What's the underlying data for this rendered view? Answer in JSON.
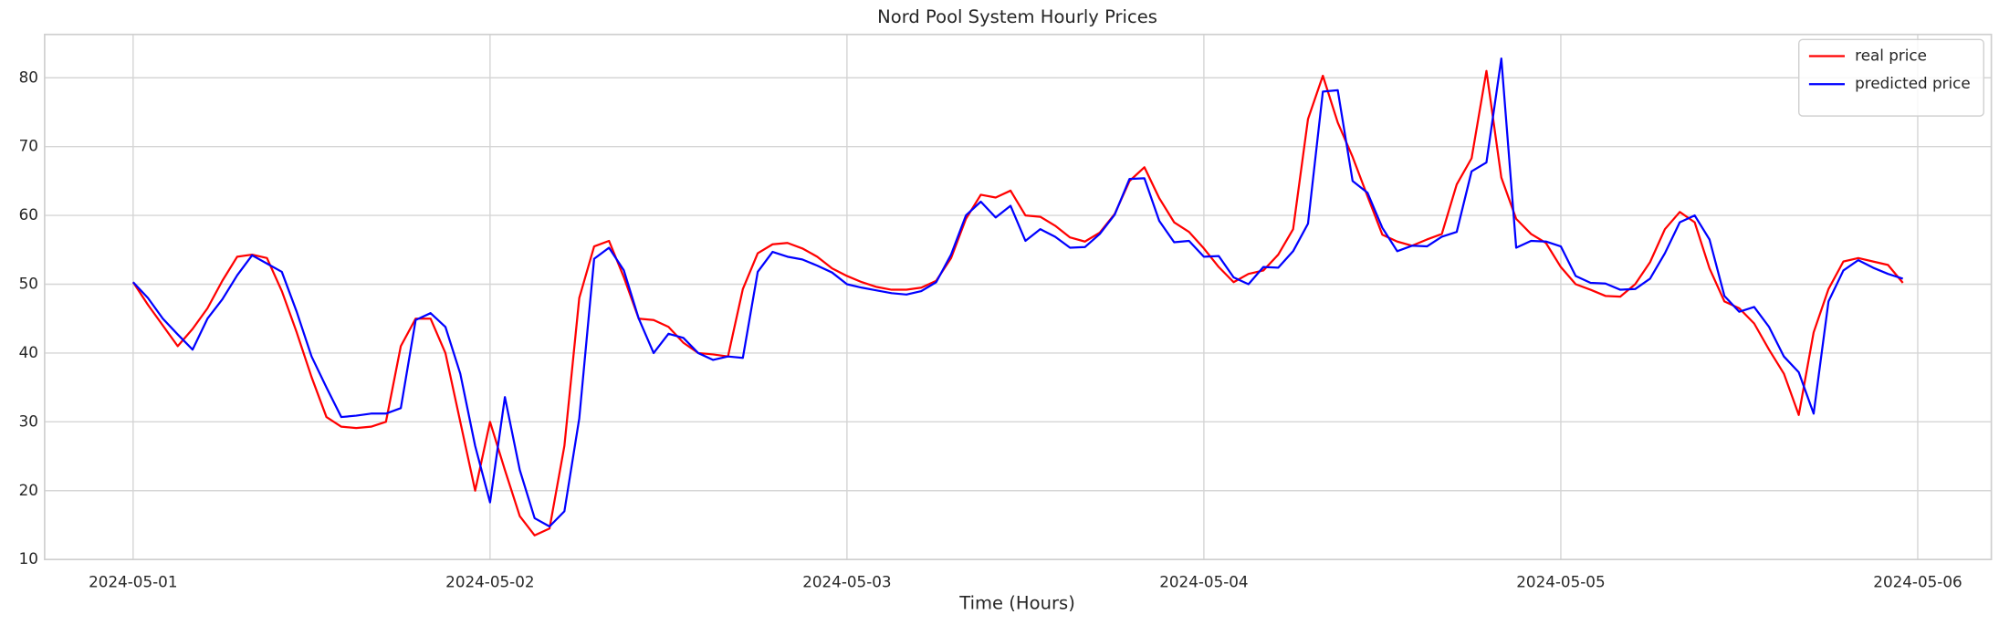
{
  "chart_data": {
    "type": "line",
    "title": "Nord Pool System Hourly Prices",
    "xlabel": "Time (Hours)",
    "x": [
      "2024-05-01T00:00",
      "2024-05-01T01:00",
      "2024-05-01T02:00",
      "2024-05-01T03:00",
      "2024-05-01T04:00",
      "2024-05-01T05:00",
      "2024-05-01T06:00",
      "2024-05-01T07:00",
      "2024-05-01T08:00",
      "2024-05-01T09:00",
      "2024-05-01T10:00",
      "2024-05-01T11:00",
      "2024-05-01T12:00",
      "2024-05-01T13:00",
      "2024-05-01T14:00",
      "2024-05-01T15:00",
      "2024-05-01T16:00",
      "2024-05-01T17:00",
      "2024-05-01T18:00",
      "2024-05-01T19:00",
      "2024-05-01T20:00",
      "2024-05-01T21:00",
      "2024-05-01T22:00",
      "2024-05-01T23:00",
      "2024-05-02T00:00",
      "2024-05-02T01:00",
      "2024-05-02T02:00",
      "2024-05-02T03:00",
      "2024-05-02T04:00",
      "2024-05-02T05:00",
      "2024-05-02T06:00",
      "2024-05-02T07:00",
      "2024-05-02T08:00",
      "2024-05-02T09:00",
      "2024-05-02T10:00",
      "2024-05-02T11:00",
      "2024-05-02T12:00",
      "2024-05-02T13:00",
      "2024-05-02T14:00",
      "2024-05-02T15:00",
      "2024-05-02T16:00",
      "2024-05-02T17:00",
      "2024-05-02T18:00",
      "2024-05-02T19:00",
      "2024-05-02T20:00",
      "2024-05-02T21:00",
      "2024-05-02T22:00",
      "2024-05-02T23:00",
      "2024-05-03T00:00",
      "2024-05-03T01:00",
      "2024-05-03T02:00",
      "2024-05-03T03:00",
      "2024-05-03T04:00",
      "2024-05-03T05:00",
      "2024-05-03T06:00",
      "2024-05-03T07:00",
      "2024-05-03T08:00",
      "2024-05-03T09:00",
      "2024-05-03T10:00",
      "2024-05-03T11:00",
      "2024-05-03T12:00",
      "2024-05-03T13:00",
      "2024-05-03T14:00",
      "2024-05-03T15:00",
      "2024-05-03T16:00",
      "2024-05-03T17:00",
      "2024-05-03T18:00",
      "2024-05-03T19:00",
      "2024-05-03T20:00",
      "2024-05-03T21:00",
      "2024-05-03T22:00",
      "2024-05-03T23:00",
      "2024-05-04T00:00",
      "2024-05-04T01:00",
      "2024-05-04T02:00",
      "2024-05-04T03:00",
      "2024-05-04T04:00",
      "2024-05-04T05:00",
      "2024-05-04T06:00",
      "2024-05-04T07:00",
      "2024-05-04T08:00",
      "2024-05-04T09:00",
      "2024-05-04T10:00",
      "2024-05-04T11:00",
      "2024-05-04T12:00",
      "2024-05-04T13:00",
      "2024-05-04T14:00",
      "2024-05-04T15:00",
      "2024-05-04T16:00",
      "2024-05-04T17:00",
      "2024-05-04T18:00",
      "2024-05-04T19:00",
      "2024-05-04T20:00",
      "2024-05-04T21:00",
      "2024-05-04T22:00",
      "2024-05-04T23:00",
      "2024-05-05T00:00",
      "2024-05-05T01:00",
      "2024-05-05T02:00",
      "2024-05-05T03:00",
      "2024-05-05T04:00",
      "2024-05-05T05:00",
      "2024-05-05T06:00",
      "2024-05-05T07:00",
      "2024-05-05T08:00",
      "2024-05-05T09:00",
      "2024-05-05T10:00",
      "2024-05-05T11:00",
      "2024-05-05T12:00",
      "2024-05-05T13:00",
      "2024-05-05T14:00",
      "2024-05-05T15:00",
      "2024-05-05T16:00",
      "2024-05-05T17:00",
      "2024-05-05T18:00",
      "2024-05-05T19:00",
      "2024-05-05T20:00",
      "2024-05-05T21:00",
      "2024-05-05T22:00",
      "2024-05-05T23:00"
    ],
    "series": [
      {
        "name": "real price",
        "color": "#ff0000",
        "values": [
          50.3,
          47,
          44,
          41,
          43.5,
          46.5,
          50.5,
          54,
          54.3,
          53.8,
          49,
          43,
          36.5,
          30.7,
          29.3,
          29.1,
          29.3,
          30,
          41,
          45,
          45,
          40,
          30,
          20,
          30,
          23,
          16.3,
          13.5,
          14.5,
          26.5,
          48,
          55.5,
          56.3,
          51,
          45,
          44.8,
          43.8,
          41.5,
          40,
          39.8,
          39.5,
          49.3,
          54.5,
          55.8,
          56,
          55.2,
          54,
          52.3,
          51.2,
          50.3,
          49.6,
          49.2,
          49.2,
          49.5,
          50.5,
          53.8,
          59.5,
          63,
          62.6,
          63.6,
          60,
          59.8,
          58.5,
          56.8,
          56.2,
          57.5,
          60.2,
          65,
          67,
          62.5,
          59,
          57.6,
          55.2,
          52.5,
          50.3,
          51.5,
          52,
          54.3,
          58,
          74,
          80.3,
          73.5,
          68.5,
          62.8,
          57.2,
          56.2,
          55.6,
          56.5,
          57.3,
          64.5,
          68.3,
          81,
          65.5,
          59.5,
          57.3,
          56,
          52.5,
          50,
          49.2,
          48.3,
          48.2,
          50,
          53.2,
          58,
          60.5,
          59,
          52.3,
          47.5,
          46.5,
          44.3,
          40.5,
          37,
          31,
          43,
          49.3,
          53.3,
          53.8,
          53.3,
          52.8,
          50.2
        ]
      },
      {
        "name": "predicted price",
        "color": "#0000ff",
        "values": [
          50.3,
          48,
          45,
          42.7,
          40.5,
          45,
          47.8,
          51.3,
          54.2,
          53,
          51.8,
          46,
          39.5,
          35,
          30.7,
          30.9,
          31.2,
          31.2,
          32,
          44.8,
          45.8,
          43.8,
          37,
          26.5,
          18.3,
          33.6,
          23,
          16,
          14.8,
          17,
          30.5,
          53.7,
          55.3,
          52,
          45,
          40,
          42.8,
          42.2,
          40,
          39,
          39.5,
          39.3,
          51.8,
          54.7,
          54,
          53.6,
          52.7,
          51.7,
          50,
          49.5,
          49.1,
          48.7,
          48.5,
          49,
          50.3,
          54.3,
          60,
          62,
          59.7,
          61.4,
          56.3,
          58,
          56.9,
          55.3,
          55.4,
          57.3,
          60.1,
          65.3,
          65.4,
          59.2,
          56.1,
          56.3,
          54,
          54.1,
          51,
          50,
          52.5,
          52.4,
          54.8,
          58.8,
          78,
          78.2,
          65,
          63.3,
          58.2,
          54.8,
          55.6,
          55.5,
          56.9,
          57.6,
          66.4,
          67.7,
          82.8,
          55.3,
          56.3,
          56.2,
          55.5,
          51.2,
          50.2,
          50.1,
          49.2,
          49.3,
          50.8,
          54.5,
          59,
          60,
          56.5,
          48.3,
          46,
          46.7,
          43.8,
          39.5,
          37.2,
          31.2,
          47.5,
          52,
          53.5,
          52.4,
          51.5,
          50.8
        ]
      }
    ],
    "xlim": [
      "2024-04-30T18:03",
      "2024-05-06T04:57"
    ],
    "xticks": [
      "2024-05-01",
      "2024-05-02",
      "2024-05-03",
      "2024-05-04",
      "2024-05-05",
      "2024-05-06"
    ],
    "ylim": [
      10,
      86.3
    ],
    "yticks": [
      10,
      20,
      30,
      40,
      50,
      60,
      70,
      80
    ],
    "grid": true,
    "legend": "upper right"
  }
}
